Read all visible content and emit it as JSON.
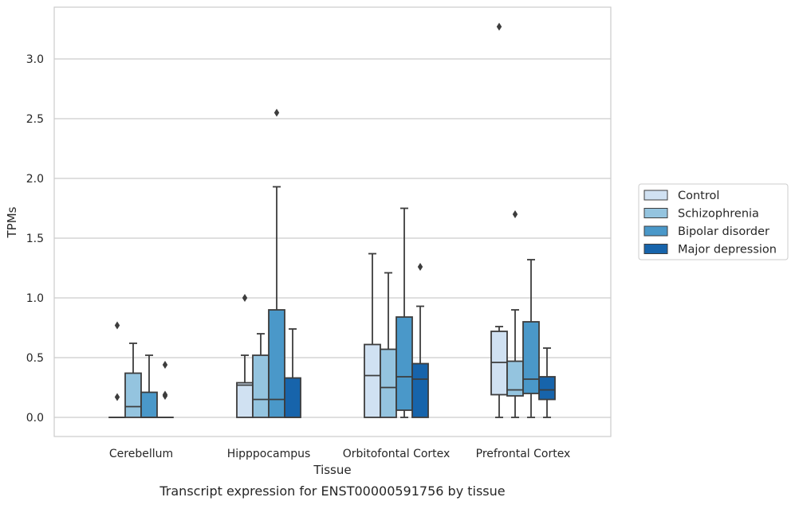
{
  "chart_data": {
    "type": "box",
    "xlabel": "Tissue",
    "ylabel": "TPMs",
    "caption": "Transcript expression for ENST00000591756 by tissue",
    "ylim": [
      -0.16,
      3.45
    ],
    "yticks": [
      "0.0",
      "0.5",
      "1.0",
      "1.5",
      "2.0",
      "2.5",
      "3.0"
    ],
    "grid": "horizontal",
    "legend_position": "right",
    "categories": [
      "Cerebellum",
      "Hipppocampus",
      "Orbitofontal Cortex",
      "Prefrontal Cortex"
    ],
    "series": [
      {
        "name": "Control",
        "color": "#d0e1f2",
        "boxes": [
          {
            "q1": 0,
            "median": 0,
            "q3": 0,
            "whislo": 0,
            "whishi": 0,
            "fliers": [
              0.17,
              0.77
            ]
          },
          {
            "q1": 0,
            "median": 0.27,
            "q3": 0.29,
            "whislo": 0,
            "whishi": 0.52,
            "fliers": [
              1.0
            ]
          },
          {
            "q1": 0,
            "median": 0.35,
            "q3": 0.61,
            "whislo": 0,
            "whishi": 1.37,
            "fliers": []
          },
          {
            "q1": 0.19,
            "median": 0.46,
            "q3": 0.72,
            "whislo": 0,
            "whishi": 0.76,
            "fliers": [
              3.27
            ]
          }
        ]
      },
      {
        "name": "Schizophrenia",
        "color": "#94c4df",
        "boxes": [
          {
            "q1": 0,
            "median": 0.09,
            "q3": 0.37,
            "whislo": 0,
            "whishi": 0.62,
            "fliers": []
          },
          {
            "q1": 0,
            "median": 0.15,
            "q3": 0.52,
            "whislo": 0,
            "whishi": 0.7,
            "fliers": []
          },
          {
            "q1": 0,
            "median": 0.25,
            "q3": 0.57,
            "whislo": 0,
            "whishi": 1.21,
            "fliers": []
          },
          {
            "q1": 0.18,
            "median": 0.23,
            "q3": 0.47,
            "whislo": 0,
            "whishi": 0.9,
            "fliers": [
              1.7
            ]
          }
        ]
      },
      {
        "name": "Bipolar disorder",
        "color": "#4a98c9",
        "boxes": [
          {
            "q1": 0,
            "median": 0,
            "q3": 0.21,
            "whislo": 0,
            "whishi": 0.52,
            "fliers": []
          },
          {
            "q1": 0,
            "median": 0.15,
            "q3": 0.9,
            "whislo": 0,
            "whishi": 1.93,
            "fliers": [
              2.55
            ]
          },
          {
            "q1": 0.06,
            "median": 0.34,
            "q3": 0.84,
            "whislo": 0,
            "whishi": 1.75,
            "fliers": []
          },
          {
            "q1": 0.2,
            "median": 0.32,
            "q3": 0.8,
            "whislo": 0,
            "whishi": 1.32,
            "fliers": []
          }
        ]
      },
      {
        "name": "Major depression",
        "color": "#1764ab",
        "boxes": [
          {
            "q1": 0,
            "median": 0,
            "q3": 0,
            "whislo": 0,
            "whishi": 0,
            "fliers": [
              0.18,
              0.19,
              0.44
            ]
          },
          {
            "q1": 0,
            "median": 0,
            "q3": 0.33,
            "whislo": 0,
            "whishi": 0.74,
            "fliers": []
          },
          {
            "q1": 0,
            "median": 0.32,
            "q3": 0.45,
            "whislo": 0,
            "whishi": 0.93,
            "fliers": [
              1.26
            ]
          },
          {
            "q1": 0.15,
            "median": 0.23,
            "q3": 0.34,
            "whislo": 0,
            "whishi": 0.58,
            "fliers": []
          }
        ]
      }
    ]
  }
}
